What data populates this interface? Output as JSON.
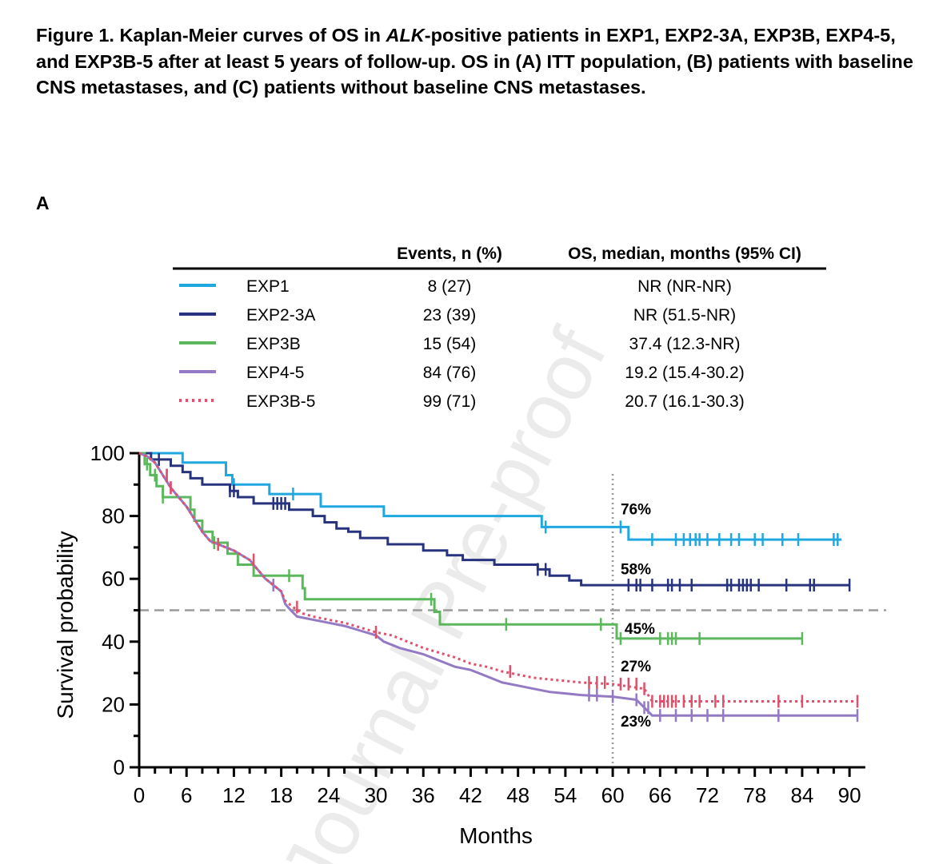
{
  "caption": {
    "part1": "Figure 1. Kaplan-Meier curves of OS in ",
    "italic": "ALK",
    "part2": "-positive patients in EXP1, EXP2-3A, EXP3B, EXP4-5, and EXP3B-5 after at least 5 years of follow-up. OS in (A) ITT population, (B) patients with baseline CNS metastases, and (C) patients without baseline CNS metastases."
  },
  "panel_label": "A",
  "watermark": "Journal Pre-proof",
  "colors": {
    "EXP1": "#1fa8e0",
    "EXP2-3A": "#27337f",
    "EXP3B": "#5cb85c",
    "EXP4-5": "#9479c4",
    "EXP3B-5": "#e0506a",
    "reference": "#9a9a9a"
  },
  "legend_table": {
    "headers": [
      "Events, n (%)",
      "OS, median, months (95% CI)"
    ],
    "rows": [
      {
        "series": "EXP1",
        "label": "EXP1",
        "events": "8 (27)",
        "median": "NR (NR-NR)",
        "line_style": "solid"
      },
      {
        "series": "EXP2-3A",
        "label": "EXP2-3A",
        "events": "23 (39)",
        "median": "NR (51.5-NR)",
        "line_style": "solid"
      },
      {
        "series": "EXP3B",
        "label": "EXP3B",
        "events": "15 (54)",
        "median": "37.4 (12.3-NR)",
        "line_style": "solid"
      },
      {
        "series": "EXP4-5",
        "label": "EXP4-5",
        "events": "84 (76)",
        "median": "19.2 (15.4-30.2)",
        "line_style": "solid"
      },
      {
        "series": "EXP3B-5",
        "label": "EXP3B-5",
        "events": "99 (71)",
        "median": "20.7 (16.1-30.3)",
        "line_style": "dotted"
      }
    ]
  },
  "chart_data": {
    "type": "line",
    "step": true,
    "xlabel": "Months",
    "ylabel": "Survival probability",
    "xlim": [
      0,
      92
    ],
    "ylim": [
      0,
      100
    ],
    "xticks": [
      0,
      6,
      12,
      18,
      24,
      30,
      36,
      42,
      48,
      54,
      60,
      66,
      72,
      78,
      84,
      90
    ],
    "yticks": [
      0,
      20,
      40,
      60,
      80,
      100
    ],
    "reference_lines": {
      "horizontal_y": 50,
      "vertical_x": 60
    },
    "annotations": [
      {
        "text": "76%",
        "x": 61,
        "y": 80.5
      },
      {
        "text": "58%",
        "x": 61,
        "y": 61.5
      },
      {
        "text": "45%",
        "x": 61.5,
        "y": 42.5
      },
      {
        "text": "27%",
        "x": 61,
        "y": 30.5
      },
      {
        "text": "23%",
        "x": 61,
        "y": 13
      }
    ],
    "series": [
      {
        "name": "EXP1",
        "style": "solid",
        "points": [
          [
            0,
            100
          ],
          [
            5.5,
            100
          ],
          [
            5.5,
            97
          ],
          [
            11,
            97
          ],
          [
            11,
            93
          ],
          [
            11.8,
            93
          ],
          [
            11.8,
            90
          ],
          [
            16.5,
            90
          ],
          [
            16.5,
            87
          ],
          [
            23,
            87
          ],
          [
            23,
            83
          ],
          [
            31,
            83
          ],
          [
            31,
            80
          ],
          [
            51,
            80
          ],
          [
            51,
            76.5
          ],
          [
            62,
            76.5
          ],
          [
            62,
            72.5
          ],
          [
            89,
            72.5
          ]
        ],
        "censor": [
          12,
          19.5,
          51.5,
          61,
          65,
          68,
          69,
          69.8,
          70.5,
          71,
          72,
          73.5,
          75,
          76,
          78,
          79,
          81.5,
          83.5,
          88,
          88.5
        ]
      },
      {
        "name": "EXP2-3A",
        "style": "solid",
        "points": [
          [
            0,
            100
          ],
          [
            1.5,
            100
          ],
          [
            1.5,
            98
          ],
          [
            4,
            98
          ],
          [
            4,
            96
          ],
          [
            5.5,
            96
          ],
          [
            5.5,
            94
          ],
          [
            6.5,
            94
          ],
          [
            6.5,
            92
          ],
          [
            8,
            92
          ],
          [
            8,
            90
          ],
          [
            11.5,
            90
          ],
          [
            11.5,
            88
          ],
          [
            12.5,
            88
          ],
          [
            12.5,
            86
          ],
          [
            14.5,
            86
          ],
          [
            14.5,
            84
          ],
          [
            19,
            84
          ],
          [
            19,
            82
          ],
          [
            22,
            82
          ],
          [
            22,
            80
          ],
          [
            23.5,
            80
          ],
          [
            23.5,
            78
          ],
          [
            25,
            78
          ],
          [
            25,
            76
          ],
          [
            26.5,
            76
          ],
          [
            26.5,
            75
          ],
          [
            28,
            75
          ],
          [
            28,
            73
          ],
          [
            31.5,
            73
          ],
          [
            31.5,
            71
          ],
          [
            36,
            71
          ],
          [
            36,
            69
          ],
          [
            39,
            69
          ],
          [
            39,
            67.5
          ],
          [
            41,
            67.5
          ],
          [
            41,
            66
          ],
          [
            45,
            66
          ],
          [
            45,
            64.5
          ],
          [
            50.5,
            64.5
          ],
          [
            50.5,
            63
          ],
          [
            52,
            63
          ],
          [
            52,
            61
          ],
          [
            54.5,
            61
          ],
          [
            54.5,
            59.5
          ],
          [
            56,
            59.5
          ],
          [
            56,
            58
          ],
          [
            90,
            58
          ]
        ],
        "censor": [
          2.5,
          11.5,
          12,
          17,
          17.5,
          18,
          18.5,
          50.5,
          51.5,
          62,
          63,
          63.5,
          65,
          67,
          67.5,
          68.5,
          70,
          74.5,
          75,
          76,
          76.5,
          77,
          77.5,
          78.5,
          82,
          85,
          85.5,
          90
        ]
      },
      {
        "name": "EXP3B",
        "style": "solid",
        "points": [
          [
            0,
            100
          ],
          [
            0.7,
            100
          ],
          [
            0.7,
            96.5
          ],
          [
            1.4,
            96.5
          ],
          [
            1.4,
            93
          ],
          [
            2.2,
            93
          ],
          [
            2.2,
            89.5
          ],
          [
            3,
            89.5
          ],
          [
            3,
            86
          ],
          [
            6.5,
            86
          ],
          [
            6.5,
            82
          ],
          [
            7,
            82
          ],
          [
            7,
            78.5
          ],
          [
            8,
            78.5
          ],
          [
            8,
            75
          ],
          [
            9.3,
            75
          ],
          [
            9.3,
            71.5
          ],
          [
            11.2,
            71.5
          ],
          [
            11.2,
            68
          ],
          [
            12.5,
            68
          ],
          [
            12.5,
            64.5
          ],
          [
            14.5,
            64.5
          ],
          [
            14.5,
            61
          ],
          [
            20.7,
            61
          ],
          [
            20.7,
            57
          ],
          [
            21,
            57
          ],
          [
            21,
            53.5
          ],
          [
            37.4,
            53.5
          ],
          [
            37.4,
            49.5
          ],
          [
            38.1,
            49.5
          ],
          [
            38.1,
            45.5
          ],
          [
            60.5,
            45.5
          ],
          [
            60.5,
            41
          ],
          [
            84,
            41
          ]
        ],
        "censor": [
          1,
          2,
          3,
          9.5,
          19,
          37,
          46.5,
          58.5,
          61,
          66,
          67,
          67.5,
          68,
          71,
          84
        ]
      },
      {
        "name": "EXP4-5",
        "style": "solid",
        "points": [
          [
            0,
            100
          ],
          [
            1,
            99
          ],
          [
            2,
            97
          ],
          [
            3,
            93
          ],
          [
            4,
            89
          ],
          [
            5,
            86
          ],
          [
            6,
            83
          ],
          [
            7,
            79
          ],
          [
            8,
            75
          ],
          [
            9,
            72
          ],
          [
            10,
            71
          ],
          [
            12,
            69
          ],
          [
            14,
            66
          ],
          [
            15,
            63
          ],
          [
            16,
            60
          ],
          [
            17,
            58
          ],
          [
            18,
            56
          ],
          [
            18.5,
            52
          ],
          [
            19.2,
            50
          ],
          [
            20,
            48
          ],
          [
            22,
            47
          ],
          [
            24,
            46
          ],
          [
            26,
            45
          ],
          [
            28,
            43.5
          ],
          [
            30,
            42
          ],
          [
            31,
            40
          ],
          [
            33,
            38
          ],
          [
            36,
            36
          ],
          [
            38,
            34
          ],
          [
            40,
            32
          ],
          [
            42,
            31
          ],
          [
            44,
            29
          ],
          [
            46,
            27
          ],
          [
            48,
            26
          ],
          [
            50,
            25
          ],
          [
            52,
            24
          ],
          [
            54,
            23.5
          ],
          [
            56,
            23
          ],
          [
            60,
            22.5
          ],
          [
            63,
            21.5
          ],
          [
            64,
            19
          ],
          [
            65,
            16.5
          ],
          [
            91,
            16.5
          ]
        ],
        "censor": [
          3.5,
          4,
          10,
          17,
          57,
          58,
          60,
          63,
          64,
          64.5,
          66,
          68,
          70,
          72,
          74,
          81,
          91
        ]
      },
      {
        "name": "EXP3B-5",
        "style": "dotted",
        "points": [
          [
            0,
            100
          ],
          [
            1,
            99
          ],
          [
            2,
            97
          ],
          [
            3,
            93
          ],
          [
            4,
            89
          ],
          [
            5,
            86
          ],
          [
            6,
            83
          ],
          [
            7,
            79
          ],
          [
            8,
            75
          ],
          [
            9,
            72
          ],
          [
            10,
            71
          ],
          [
            12,
            69
          ],
          [
            14,
            66
          ],
          [
            15,
            63
          ],
          [
            16,
            60
          ],
          [
            17,
            58
          ],
          [
            18,
            56
          ],
          [
            18.5,
            53
          ],
          [
            19.5,
            51
          ],
          [
            20.7,
            49
          ],
          [
            22,
            48
          ],
          [
            24,
            47
          ],
          [
            26,
            46
          ],
          [
            28,
            44.5
          ],
          [
            30,
            43
          ],
          [
            32,
            42
          ],
          [
            34,
            40
          ],
          [
            36,
            38
          ],
          [
            38,
            36.5
          ],
          [
            40,
            35
          ],
          [
            42,
            33
          ],
          [
            44,
            32
          ],
          [
            46,
            30.5
          ],
          [
            48,
            29.5
          ],
          [
            50,
            28.5
          ],
          [
            52,
            28
          ],
          [
            54,
            27.5
          ],
          [
            56,
            27
          ],
          [
            60,
            26.5
          ],
          [
            64,
            25
          ],
          [
            65,
            21
          ],
          [
            91,
            21
          ]
        ],
        "censor": [
          3.5,
          4,
          10,
          14.5,
          20,
          30,
          47,
          57,
          58,
          59,
          61,
          62,
          63,
          64,
          65,
          66,
          66.5,
          67,
          67.5,
          68,
          69,
          70,
          71,
          73,
          74,
          81,
          84,
          91
        ]
      }
    ]
  }
}
